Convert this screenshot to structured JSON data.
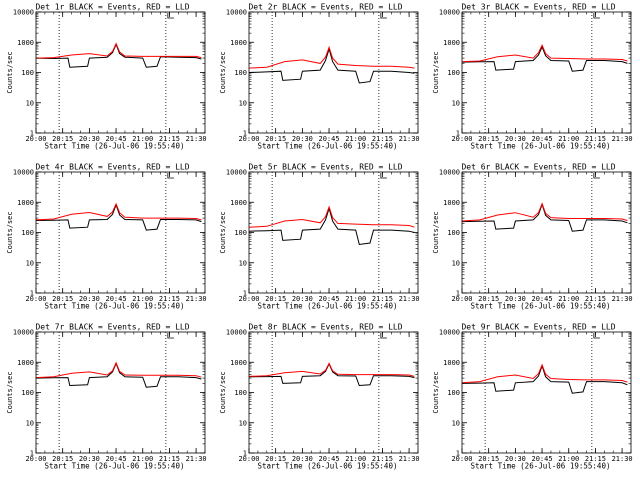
{
  "chart_data": [
    {
      "type": "line",
      "title": "Det 1r BLACK = Events, RED = LLD",
      "xlabel": "Start Time (26-Jul-06 19:55:40)",
      "ylabel": "Counts/sec",
      "xlim": [
        "20:00",
        "21:35"
      ],
      "ylim": [
        1,
        10000
      ],
      "yscale": "log",
      "x_tick_labels": [
        "20:00",
        "20:15",
        "20:30",
        "20:45",
        "21:00",
        "21:15",
        "21:30"
      ],
      "y_tick_labels": [
        "1",
        "10",
        "100",
        "1000",
        "10000"
      ],
      "vlines": [
        "20:13",
        "21:13"
      ],
      "series": [
        {
          "name": "Events",
          "color": "#000000",
          "x": [
            "20:00",
            "20:10",
            "20:18",
            "20:19",
            "20:29",
            "20:30",
            "20:40",
            "20:43",
            "20:45",
            "20:47",
            "20:50",
            "21:00",
            "21:02",
            "21:08",
            "21:10",
            "21:20",
            "21:30",
            "21:33"
          ],
          "y": [
            300,
            290,
            300,
            150,
            160,
            300,
            320,
            450,
            850,
            420,
            320,
            300,
            150,
            160,
            330,
            320,
            310,
            280
          ]
        },
        {
          "name": "LLD",
          "color": "#ff0000",
          "x": [
            "20:00",
            "20:10",
            "20:20",
            "20:30",
            "20:40",
            "20:43",
            "20:45",
            "20:47",
            "20:50",
            "21:00",
            "21:10",
            "21:20",
            "21:30",
            "21:33"
          ],
          "y": [
            300,
            310,
            380,
            420,
            350,
            500,
            900,
            480,
            350,
            340,
            340,
            340,
            340,
            310
          ]
        }
      ]
    },
    {
      "type": "line",
      "title": "Det 2r BLACK = Events, RED = LLD",
      "xlabel": "Start Time (26-Jul-06 19:55:40)",
      "ylabel": "Counts/sec",
      "xlim": [
        "20:00",
        "21:35"
      ],
      "ylim": [
        1,
        10000
      ],
      "yscale": "log",
      "x_tick_labels": [
        "20:00",
        "20:15",
        "20:30",
        "20:45",
        "21:00",
        "21:15",
        "21:30"
      ],
      "y_tick_labels": [
        "1",
        "10",
        "100",
        "1000",
        "10000"
      ],
      "vlines": [
        "20:13",
        "21:13"
      ],
      "series": [
        {
          "name": "Events",
          "color": "#000000",
          "x": [
            "20:00",
            "20:10",
            "20:18",
            "20:19",
            "20:29",
            "20:30",
            "20:40",
            "20:43",
            "20:45",
            "20:47",
            "20:50",
            "21:00",
            "21:02",
            "21:08",
            "21:10",
            "21:20",
            "21:30",
            "21:33"
          ],
          "y": [
            100,
            105,
            110,
            55,
            60,
            110,
            120,
            250,
            600,
            230,
            120,
            110,
            45,
            50,
            110,
            110,
            100,
            95
          ]
        },
        {
          "name": "LLD",
          "color": "#ff0000",
          "x": [
            "20:00",
            "20:10",
            "20:20",
            "20:30",
            "20:40",
            "20:43",
            "20:45",
            "20:47",
            "20:50",
            "21:00",
            "21:10",
            "21:20",
            "21:30",
            "21:33"
          ],
          "y": [
            140,
            150,
            230,
            260,
            200,
            320,
            680,
            300,
            190,
            170,
            160,
            160,
            150,
            140
          ]
        }
      ]
    },
    {
      "type": "line",
      "title": "Det 3r BLACK = Events, RED = LLD",
      "xlabel": "Start Time (26-Jul-06 19:55:40)",
      "ylabel": "Counts/sec",
      "xlim": [
        "20:00",
        "21:35"
      ],
      "ylim": [
        1,
        10000
      ],
      "yscale": "log",
      "x_tick_labels": [
        "20:00",
        "20:15",
        "20:30",
        "20:45",
        "21:00",
        "21:15",
        "21:30"
      ],
      "y_tick_labels": [
        "1",
        "10",
        "100",
        "1000",
        "10000"
      ],
      "vlines": [
        "20:13",
        "21:13"
      ],
      "series": [
        {
          "name": "Events",
          "color": "#000000",
          "x": [
            "20:00",
            "20:10",
            "20:18",
            "20:19",
            "20:29",
            "20:30",
            "20:40",
            "20:43",
            "20:45",
            "20:47",
            "20:50",
            "21:00",
            "21:02",
            "21:08",
            "21:10",
            "21:20",
            "21:30",
            "21:33"
          ],
          "y": [
            220,
            225,
            230,
            120,
            130,
            230,
            250,
            380,
            700,
            360,
            250,
            240,
            110,
            120,
            250,
            250,
            230,
            200
          ]
        },
        {
          "name": "LLD",
          "color": "#ff0000",
          "x": [
            "20:00",
            "20:10",
            "20:20",
            "20:30",
            "20:40",
            "20:43",
            "20:45",
            "20:47",
            "20:50",
            "21:00",
            "21:10",
            "21:20",
            "21:30",
            "21:33"
          ],
          "y": [
            230,
            240,
            330,
            380,
            300,
            450,
            800,
            420,
            300,
            290,
            280,
            280,
            270,
            240
          ]
        }
      ]
    },
    {
      "type": "line",
      "title": "Det 4r BLACK = Events, RED = LLD",
      "xlabel": "Start Time (26-Jul-06 19:55:40)",
      "ylabel": "Counts/sec",
      "xlim": [
        "20:00",
        "21:35"
      ],
      "ylim": [
        1,
        10000
      ],
      "yscale": "log",
      "x_tick_labels": [
        "20:00",
        "20:15",
        "20:30",
        "20:45",
        "21:00",
        "21:15",
        "21:30"
      ],
      "y_tick_labels": [
        "1",
        "10",
        "100",
        "1000",
        "10000"
      ],
      "vlines": [
        "20:13",
        "21:13"
      ],
      "series": [
        {
          "name": "Events",
          "color": "#000000",
          "x": [
            "20:00",
            "20:10",
            "20:18",
            "20:19",
            "20:29",
            "20:30",
            "20:40",
            "20:43",
            "20:45",
            "20:47",
            "20:50",
            "21:00",
            "21:02",
            "21:08",
            "21:10",
            "21:20",
            "21:30",
            "21:33"
          ],
          "y": [
            250,
            255,
            260,
            140,
            150,
            260,
            270,
            400,
            820,
            380,
            270,
            260,
            120,
            130,
            270,
            270,
            260,
            230
          ]
        },
        {
          "name": "LLD",
          "color": "#ff0000",
          "x": [
            "20:00",
            "20:10",
            "20:20",
            "20:30",
            "20:40",
            "20:43",
            "20:45",
            "20:47",
            "20:50",
            "21:00",
            "21:10",
            "21:20",
            "21:30",
            "21:33"
          ],
          "y": [
            260,
            280,
            400,
            460,
            340,
            480,
            880,
            450,
            320,
            300,
            300,
            300,
            290,
            260
          ]
        }
      ]
    },
    {
      "type": "line",
      "title": "Det 5r BLACK = Events, RED = LLD",
      "xlabel": "Start Time (26-Jul-06 19:55:40)",
      "ylabel": "Counts/sec",
      "xlim": [
        "20:00",
        "21:35"
      ],
      "ylim": [
        1,
        10000
      ],
      "yscale": "log",
      "x_tick_labels": [
        "20:00",
        "20:15",
        "20:30",
        "20:45",
        "21:00",
        "21:15",
        "21:30"
      ],
      "y_tick_labels": [
        "1",
        "10",
        "100",
        "1000",
        "10000"
      ],
      "vlines": [
        "20:13",
        "21:13"
      ],
      "series": [
        {
          "name": "Events",
          "color": "#000000",
          "x": [
            "20:00",
            "20:10",
            "20:18",
            "20:19",
            "20:29",
            "20:30",
            "20:40",
            "20:43",
            "20:45",
            "20:47",
            "20:50",
            "21:00",
            "21:02",
            "21:08",
            "21:10",
            "21:20",
            "21:30",
            "21:33"
          ],
          "y": [
            110,
            115,
            120,
            55,
            60,
            120,
            130,
            260,
            620,
            240,
            130,
            120,
            40,
            45,
            120,
            120,
            110,
            100
          ]
        },
        {
          "name": "LLD",
          "color": "#ff0000",
          "x": [
            "20:00",
            "20:10",
            "20:20",
            "20:30",
            "20:40",
            "20:43",
            "20:45",
            "20:47",
            "20:50",
            "21:00",
            "21:10",
            "21:20",
            "21:30",
            "21:33"
          ],
          "y": [
            150,
            160,
            240,
            270,
            210,
            330,
            700,
            310,
            200,
            190,
            180,
            180,
            170,
            150
          ]
        }
      ]
    },
    {
      "type": "line",
      "title": "Det 6r BLACK = Events, RED = LLD",
      "xlabel": "Start Time (26-Jul-06 19:55:40)",
      "ylabel": "Counts/sec",
      "xlim": [
        "20:00",
        "21:35"
      ],
      "ylim": [
        1,
        10000
      ],
      "yscale": "log",
      "x_tick_labels": [
        "20:00",
        "20:15",
        "20:30",
        "20:45",
        "21:00",
        "21:15",
        "21:30"
      ],
      "y_tick_labels": [
        "1",
        "10",
        "100",
        "1000",
        "10000"
      ],
      "vlines": [
        "20:13",
        "21:13"
      ],
      "series": [
        {
          "name": "Events",
          "color": "#000000",
          "x": [
            "20:00",
            "20:10",
            "20:18",
            "20:19",
            "20:29",
            "20:30",
            "20:40",
            "20:43",
            "20:45",
            "20:47",
            "20:50",
            "21:00",
            "21:02",
            "21:08",
            "21:10",
            "21:20",
            "21:30",
            "21:33"
          ],
          "y": [
            230,
            235,
            240,
            130,
            140,
            240,
            260,
            390,
            850,
            370,
            260,
            250,
            110,
            120,
            260,
            260,
            240,
            210
          ]
        },
        {
          "name": "LLD",
          "color": "#ff0000",
          "x": [
            "20:00",
            "20:10",
            "20:20",
            "20:30",
            "20:40",
            "20:43",
            "20:45",
            "20:47",
            "20:50",
            "21:00",
            "21:10",
            "21:20",
            "21:30",
            "21:33"
          ],
          "y": [
            240,
            260,
            380,
            450,
            320,
            460,
            900,
            430,
            310,
            290,
            290,
            290,
            280,
            250
          ]
        }
      ]
    },
    {
      "type": "line",
      "title": "Det 7r BLACK = Events, RED = LLD",
      "xlabel": "Start Time (26-Jul-06 19:55:40)",
      "ylabel": "Counts/sec",
      "xlim": [
        "20:00",
        "21:35"
      ],
      "ylim": [
        1,
        10000
      ],
      "yscale": "log",
      "x_tick_labels": [
        "20:00",
        "20:15",
        "20:30",
        "20:45",
        "21:00",
        "21:15",
        "21:30"
      ],
      "y_tick_labels": [
        "1",
        "10",
        "100",
        "1000",
        "10000"
      ],
      "vlines": [
        "20:13",
        "21:13"
      ],
      "series": [
        {
          "name": "Events",
          "color": "#000000",
          "x": [
            "20:00",
            "20:10",
            "20:18",
            "20:19",
            "20:29",
            "20:30",
            "20:40",
            "20:43",
            "20:45",
            "20:47",
            "20:50",
            "21:00",
            "21:02",
            "21:08",
            "21:10",
            "21:20",
            "21:30",
            "21:33"
          ],
          "y": [
            300,
            305,
            310,
            170,
            180,
            310,
            330,
            480,
            900,
            450,
            330,
            320,
            150,
            160,
            330,
            330,
            310,
            280
          ]
        },
        {
          "name": "LLD",
          "color": "#ff0000",
          "x": [
            "20:00",
            "20:10",
            "20:20",
            "20:30",
            "20:40",
            "20:43",
            "20:45",
            "20:47",
            "20:50",
            "21:00",
            "21:10",
            "21:20",
            "21:30",
            "21:33"
          ],
          "y": [
            310,
            330,
            430,
            480,
            380,
            520,
            960,
            500,
            380,
            370,
            370,
            370,
            360,
            320
          ]
        }
      ]
    },
    {
      "type": "line",
      "title": "Det 8r BLACK = Events, RED = LLD",
      "xlabel": "Start Time (26-Jul-06 19:55:40)",
      "ylabel": "Counts/sec",
      "xlim": [
        "20:00",
        "21:35"
      ],
      "ylim": [
        1,
        10000
      ],
      "yscale": "log",
      "x_tick_labels": [
        "20:00",
        "20:15",
        "20:30",
        "20:45",
        "21:00",
        "21:15",
        "21:30"
      ],
      "y_tick_labels": [
        "1",
        "10",
        "100",
        "1000",
        "10000"
      ],
      "vlines": [
        "20:13",
        "21:13"
      ],
      "series": [
        {
          "name": "Events",
          "color": "#000000",
          "x": [
            "20:00",
            "20:10",
            "20:18",
            "20:19",
            "20:29",
            "20:30",
            "20:40",
            "20:43",
            "20:45",
            "20:47",
            "20:50",
            "21:00",
            "21:02",
            "21:08",
            "21:10",
            "21:20",
            "21:30",
            "21:33"
          ],
          "y": [
            330,
            335,
            340,
            200,
            210,
            340,
            360,
            500,
            880,
            480,
            360,
            350,
            170,
            180,
            360,
            360,
            340,
            310
          ]
        },
        {
          "name": "LLD",
          "color": "#ff0000",
          "x": [
            "20:00",
            "20:10",
            "20:20",
            "20:30",
            "20:40",
            "20:43",
            "20:45",
            "20:47",
            "20:50",
            "21:00",
            "21:10",
            "21:20",
            "21:30",
            "21:33"
          ],
          "y": [
            340,
            360,
            450,
            500,
            410,
            540,
            920,
            520,
            400,
            390,
            390,
            390,
            380,
            340
          ]
        }
      ]
    },
    {
      "type": "line",
      "title": "Det 9r BLACK = Events, RED = LLD",
      "xlabel": "Start Time (26-Jul-06 19:55:40)",
      "ylabel": "Counts/sec",
      "xlim": [
        "20:00",
        "21:35"
      ],
      "ylim": [
        1,
        10000
      ],
      "yscale": "log",
      "x_tick_labels": [
        "20:00",
        "20:15",
        "20:30",
        "20:45",
        "21:00",
        "21:15",
        "21:30"
      ],
      "y_tick_labels": [
        "1",
        "10",
        "100",
        "1000",
        "10000"
      ],
      "vlines": [
        "20:13",
        "21:13"
      ],
      "series": [
        {
          "name": "Events",
          "color": "#000000",
          "x": [
            "20:00",
            "20:10",
            "20:18",
            "20:19",
            "20:29",
            "20:30",
            "20:40",
            "20:43",
            "20:45",
            "20:47",
            "20:50",
            "21:00",
            "21:02",
            "21:08",
            "21:10",
            "21:20",
            "21:30",
            "21:33"
          ],
          "y": [
            200,
            205,
            210,
            110,
            120,
            210,
            230,
            350,
            750,
            330,
            230,
            220,
            95,
            105,
            230,
            230,
            210,
            180
          ]
        },
        {
          "name": "LLD",
          "color": "#ff0000",
          "x": [
            "20:00",
            "20:10",
            "20:20",
            "20:30",
            "20:40",
            "20:43",
            "20:45",
            "20:47",
            "20:50",
            "21:00",
            "21:10",
            "21:20",
            "21:30",
            "21:33"
          ],
          "y": [
            210,
            230,
            330,
            380,
            290,
            420,
            820,
            400,
            290,
            270,
            260,
            260,
            250,
            220
          ]
        }
      ]
    }
  ]
}
